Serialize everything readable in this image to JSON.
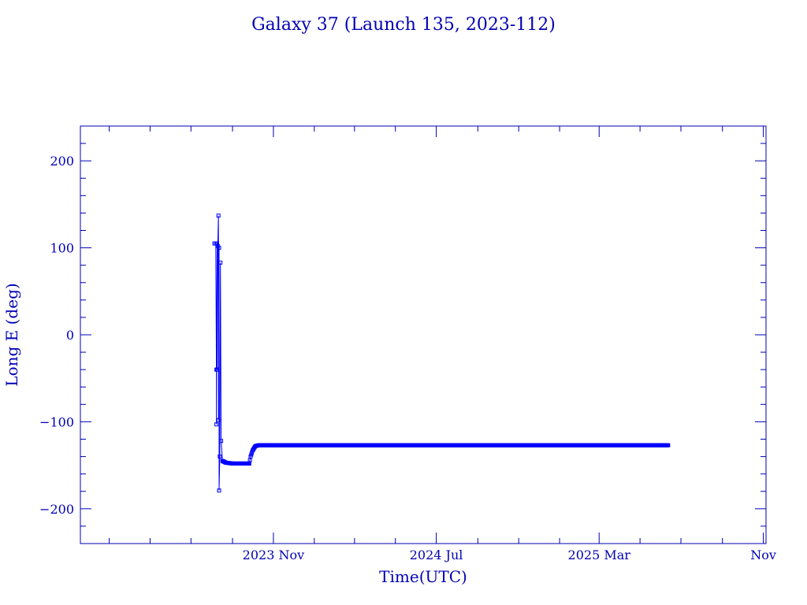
{
  "chart_data": {
    "type": "line",
    "title": "Galaxy 37 (Launch 135, 2023-112)",
    "xlabel": "Time(UTC)",
    "ylabel": "Long E (deg)",
    "xlim": [
      "2023-01-17",
      "2025-11-05"
    ],
    "ylim": [
      -240,
      240
    ],
    "x_ticks": [
      {
        "date": "2023-11-01",
        "label": "2023 Nov"
      },
      {
        "date": "2024-07-01",
        "label": "2024 Jul"
      },
      {
        "date": "2025-03-01",
        "label": "2025 Mar"
      },
      {
        "date": "2025-11-01",
        "label": "Nov"
      }
    ],
    "y_ticks": [
      -200,
      -100,
      0,
      100,
      200
    ],
    "grid": false,
    "colors": {
      "frame": "#0000b4",
      "series": "#0000ff"
    },
    "series": [
      {
        "points": [
          {
            "x": "2023-08-05",
            "y": 105
          },
          {
            "x": "2023-08-07",
            "y": 105
          },
          {
            "x": "2023-08-08",
            "y": -40
          },
          {
            "x": "2023-08-08",
            "y": -103
          },
          {
            "x": "2023-08-09",
            "y": 105
          },
          {
            "x": "2023-08-09",
            "y": -40
          },
          {
            "x": "2023-08-10",
            "y": 102
          },
          {
            "x": "2023-08-11",
            "y": 137
          },
          {
            "x": "2023-08-11",
            "y": -98
          },
          {
            "x": "2023-08-12",
            "y": 100
          },
          {
            "x": "2023-08-12",
            "y": -179
          },
          {
            "x": "2023-08-13",
            "y": -140
          },
          {
            "x": "2023-08-14",
            "y": 83
          },
          {
            "x": "2023-08-15",
            "y": -122
          },
          {
            "x": "2023-08-17",
            "y": -145
          },
          {
            "x": "2023-08-22",
            "y": -147
          },
          {
            "x": "2023-09-01",
            "y": -148
          },
          {
            "x": "2023-09-15",
            "y": -148
          },
          {
            "x": "2023-09-26",
            "y": -148
          },
          {
            "x": "2023-09-28",
            "y": -140
          },
          {
            "x": "2023-10-01",
            "y": -133
          },
          {
            "x": "2023-10-05",
            "y": -128
          },
          {
            "x": "2023-10-10",
            "y": -127
          },
          {
            "x": "2023-11-01",
            "y": -127
          },
          {
            "x": "2024-03-01",
            "y": -127
          },
          {
            "x": "2024-07-01",
            "y": -127
          },
          {
            "x": "2024-11-01",
            "y": -127
          },
          {
            "x": "2025-03-01",
            "y": -127
          },
          {
            "x": "2025-06-12",
            "y": -127
          }
        ]
      }
    ]
  }
}
